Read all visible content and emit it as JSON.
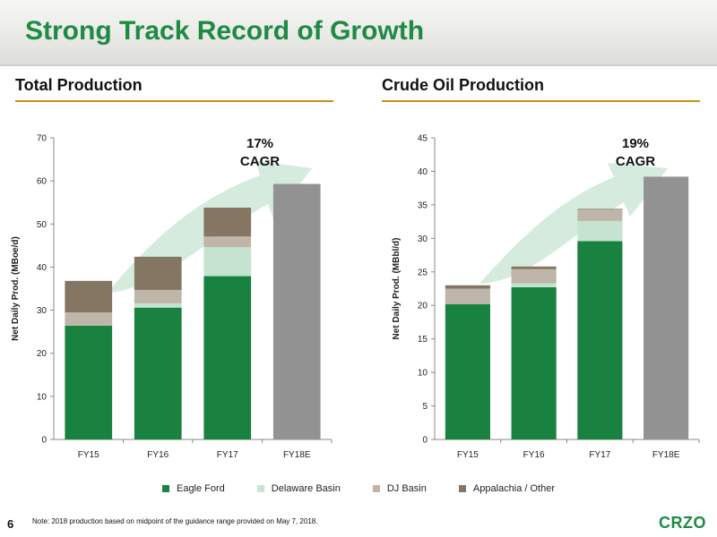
{
  "slide": {
    "title": "Strong Track Record of Growth",
    "page_number": "6",
    "note": "Note: 2018 production based on midpoint of the guidance range provided on May 7, 2018.",
    "logo": "CRZO"
  },
  "colors": {
    "title_green": "#1e8a44",
    "rule_gold": "#c69214",
    "eagle_ford": "#1a8240",
    "delaware_basin": "#c4e3d0",
    "dj_basin": "#bfb5a8",
    "appalachia_other": "#847663",
    "fy18e": "#929292",
    "arrow": "#d4ebdd"
  },
  "legend": [
    {
      "name": "Eagle Ford",
      "color": "#1a8240"
    },
    {
      "name": "Delaware Basin",
      "color": "#c4e3d0"
    },
    {
      "name": "DJ Basin",
      "color": "#bfb5a8"
    },
    {
      "name": "Appalachia / Other",
      "color": "#847663"
    }
  ],
  "chart_data": [
    {
      "type": "bar",
      "stacked": true,
      "title": "Total Production",
      "ylabel": "Net Daily Prod. (MBoe/d)",
      "xlabel": "",
      "categories": [
        "FY15",
        "FY16",
        "FY17",
        "FY18E"
      ],
      "ylim": [
        0,
        70
      ],
      "yticks": [
        0,
        10,
        20,
        30,
        40,
        50,
        60,
        70
      ],
      "series": [
        {
          "name": "Eagle Ford",
          "color": "#1a8240",
          "values": [
            26.4,
            30.6,
            37.9,
            0
          ]
        },
        {
          "name": "Delaware Basin",
          "color": "#c4e3d0",
          "values": [
            0,
            1.0,
            6.7,
            0
          ]
        },
        {
          "name": "DJ Basin",
          "color": "#bfb5a8",
          "values": [
            3.1,
            3.1,
            2.5,
            0
          ]
        },
        {
          "name": "Appalachia / Other",
          "color": "#847663",
          "values": [
            7.3,
            7.7,
            6.7,
            0
          ]
        }
      ],
      "total_only": {
        "category": "FY18E",
        "value": 59.3,
        "color": "#929292"
      },
      "annotation": {
        "line1": "17%",
        "line2": "CAGR"
      },
      "grid": false
    },
    {
      "type": "bar",
      "stacked": true,
      "title": "Crude Oil Production",
      "ylabel": "Net Daily Prod. (MBbl/d)",
      "xlabel": "",
      "categories": [
        "FY15",
        "FY16",
        "FY17",
        "FY18E"
      ],
      "ylim": [
        0,
        45
      ],
      "yticks": [
        0,
        5,
        10,
        15,
        20,
        25,
        30,
        35,
        40,
        45
      ],
      "series": [
        {
          "name": "Eagle Ford",
          "color": "#1a8240",
          "values": [
            20.2,
            22.7,
            29.6,
            0
          ]
        },
        {
          "name": "Delaware Basin",
          "color": "#c4e3d0",
          "values": [
            0,
            0.6,
            3.0,
            0
          ]
        },
        {
          "name": "DJ Basin",
          "color": "#bfb5a8",
          "values": [
            2.3,
            2.1,
            1.7,
            0
          ]
        },
        {
          "name": "Appalachia / Other",
          "color": "#847663",
          "values": [
            0.5,
            0.4,
            0.1,
            0
          ]
        }
      ],
      "total_only": {
        "category": "FY18E",
        "value": 39.2,
        "color": "#929292"
      },
      "annotation": {
        "line1": "19%",
        "line2": "CAGR"
      },
      "grid": false
    }
  ]
}
